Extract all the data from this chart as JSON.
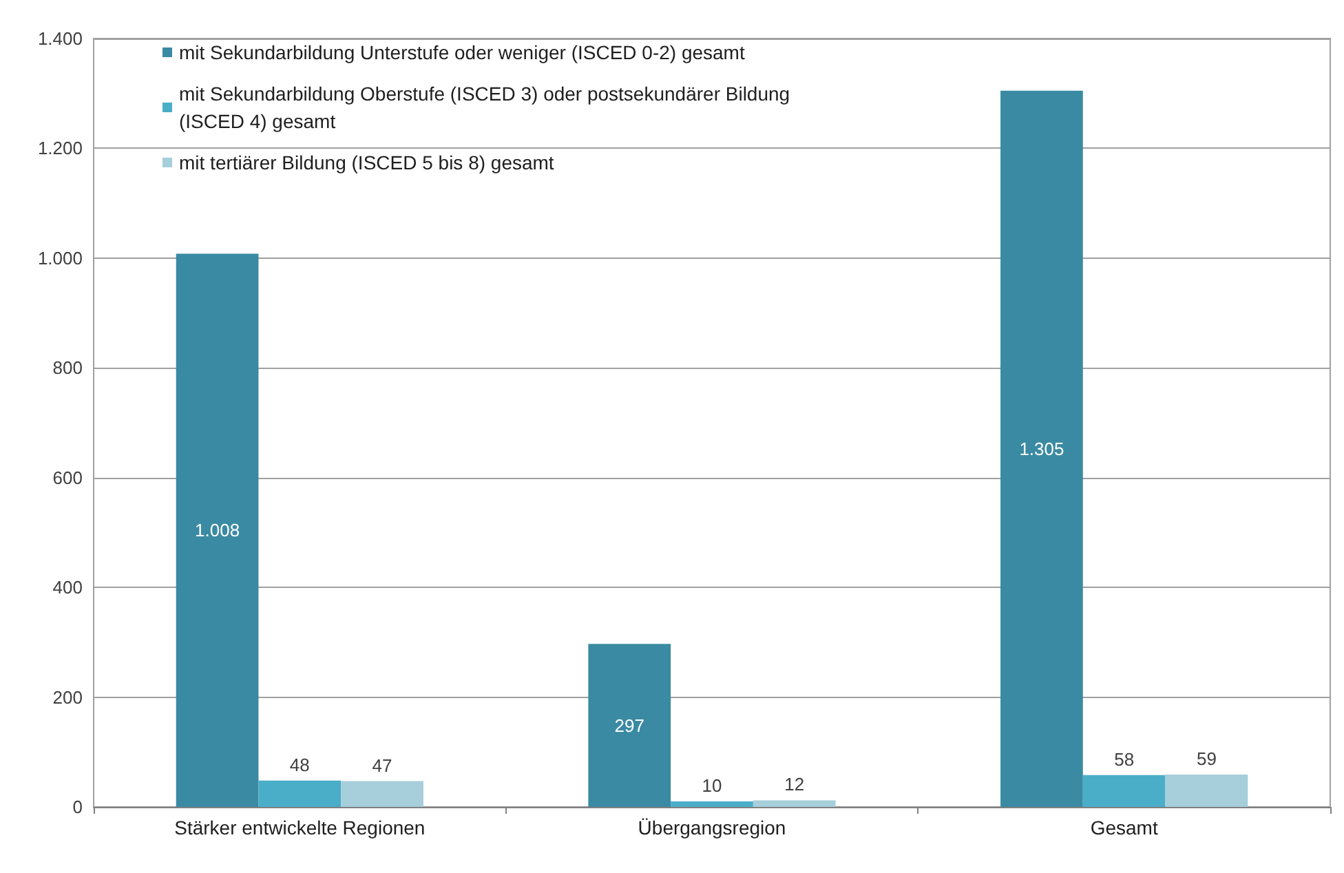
{
  "chart_data": {
    "type": "bar",
    "categories": [
      "Stärker entwickelte Regionen",
      "Übergangsregion",
      "Gesamt"
    ],
    "series": [
      {
        "name": "mit Sekundarbildung Unterstufe oder weniger (ISCED 0-2) gesamt",
        "color": "#3a8aa3",
        "values": [
          1008,
          297,
          1305
        ],
        "value_labels": [
          "1.008",
          "297",
          "1.305"
        ]
      },
      {
        "name": "mit Sekundarbildung Oberstufe (ISCED 3) oder postsekundärer Bildung (ISCED 4) gesamt",
        "color": "#4aaec8",
        "values": [
          48,
          10,
          58
        ],
        "value_labels": [
          "48",
          "10",
          "58"
        ]
      },
      {
        "name": "mit tertiärer Bildung (ISCED 5 bis 8) gesamt",
        "color": "#a6cedb",
        "values": [
          47,
          12,
          59
        ],
        "value_labels": [
          "47",
          "12",
          "59"
        ]
      }
    ],
    "ylim": [
      0,
      1400
    ],
    "yticks": [
      0,
      200,
      400,
      600,
      800,
      {
        "value": 1000,
        "label": "1.000"
      },
      {
        "value": 1200,
        "label": "1.200"
      },
      {
        "value": 1400,
        "label": "1.400"
      }
    ],
    "grid": "y",
    "legend": "top left"
  }
}
